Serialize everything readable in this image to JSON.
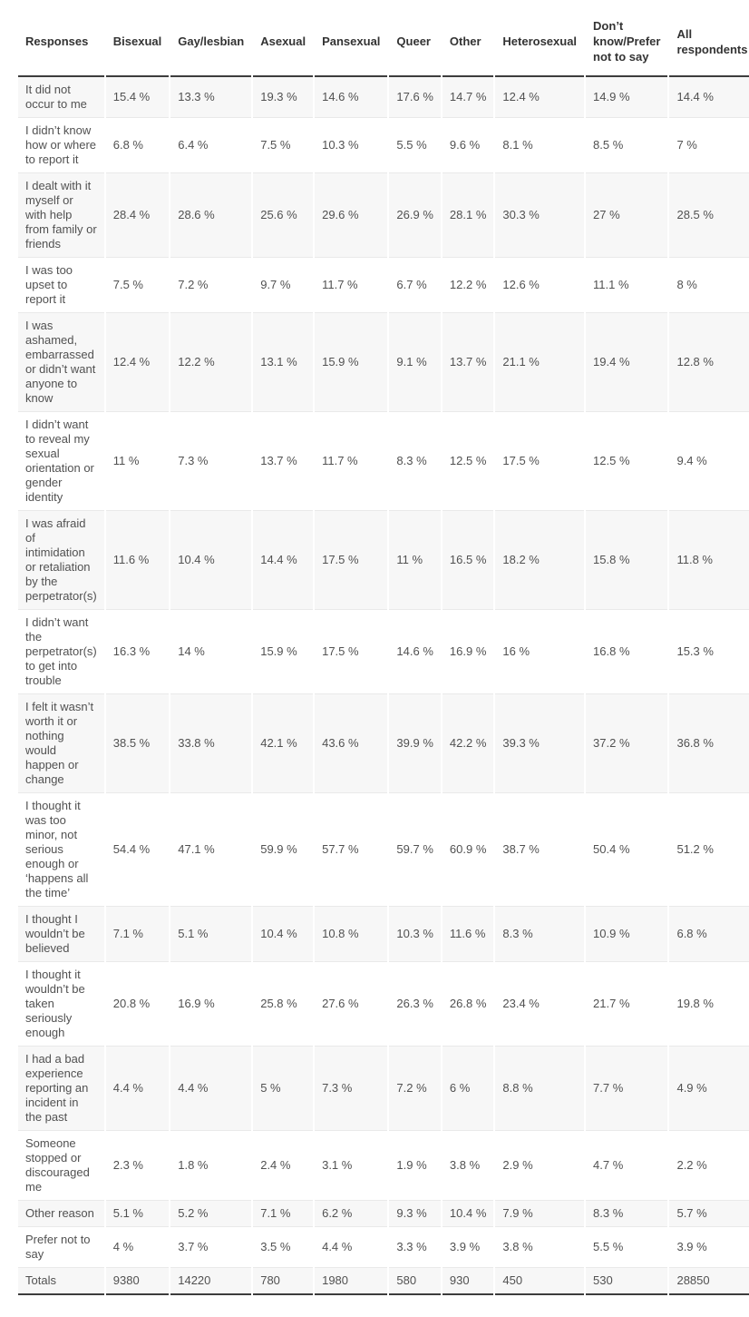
{
  "colors": {
    "row_alt_background": "#f7f7f7",
    "row_separator": "#e9e9e9",
    "heavy_rule": "#3d3d3d",
    "header_text": "#333333",
    "cell_text": "#515151"
  },
  "table": {
    "columns": [
      "Responses",
      "Bisexual",
      "Gay/lesbian",
      "Asexual",
      "Pansexual",
      "Queer",
      "Other",
      "Heterosexual",
      "Don’t know/Prefer not to say",
      "All respondents"
    ],
    "rows": [
      {
        "label": "It did not occur to me",
        "values": [
          "15.4 %",
          "13.3 %",
          "19.3 %",
          "14.6 %",
          "17.6 %",
          "14.7 %",
          "12.4 %",
          "14.9 %",
          "14.4 %"
        ]
      },
      {
        "label": "I didn’t know how or where to report it",
        "values": [
          "6.8 %",
          "6.4 %",
          "7.5 %",
          "10.3 %",
          "5.5 %",
          "9.6 %",
          "8.1 %",
          "8.5 %",
          "7 %"
        ]
      },
      {
        "label": "I dealt with it myself or with help from family or friends",
        "values": [
          "28.4 %",
          "28.6 %",
          "25.6 %",
          "29.6 %",
          "26.9 %",
          "28.1 %",
          "30.3 %",
          "27 %",
          "28.5 %"
        ]
      },
      {
        "label": "I was too upset to report it",
        "values": [
          "7.5 %",
          "7.2 %",
          "9.7 %",
          "11.7 %",
          "6.7 %",
          "12.2 %",
          "12.6 %",
          "11.1 %",
          "8 %"
        ]
      },
      {
        "label": "I was ashamed, embarrassed or didn’t want anyone to know",
        "values": [
          "12.4 %",
          "12.2 %",
          "13.1 %",
          "15.9 %",
          "9.1 %",
          "13.7 %",
          "21.1 %",
          "19.4 %",
          "12.8 %"
        ]
      },
      {
        "label": "I didn’t want to reveal my sexual orientation or gender identity",
        "values": [
          "11 %",
          "7.3 %",
          "13.7 %",
          "11.7 %",
          "8.3 %",
          "12.5 %",
          "17.5 %",
          "12.5 %",
          "9.4 %"
        ]
      },
      {
        "label": "I was afraid of intimidation or retaliation by the perpetrator(s)",
        "values": [
          "11.6 %",
          "10.4 %",
          "14.4 %",
          "17.5 %",
          "11 %",
          "16.5 %",
          "18.2 %",
          "15.8 %",
          "11.8 %"
        ]
      },
      {
        "label": "I didn’t want the perpetrator(s) to get into trouble",
        "values": [
          "16.3 %",
          "14 %",
          "15.9 %",
          "17.5 %",
          "14.6 %",
          "16.9 %",
          "16 %",
          "16.8 %",
          "15.3 %"
        ]
      },
      {
        "label": "I felt it wasn’t worth it or nothing would happen or change",
        "values": [
          "38.5 %",
          "33.8 %",
          "42.1 %",
          "43.6 %",
          "39.9 %",
          "42.2 %",
          "39.3 %",
          "37.2 %",
          "36.8 %"
        ]
      },
      {
        "label": "I thought it was too minor, not serious enough or ‘happens all the time’",
        "values": [
          "54.4 %",
          "47.1 %",
          "59.9 %",
          "57.7 %",
          "59.7 %",
          "60.9 %",
          "38.7 %",
          "50.4 %",
          "51.2 %"
        ]
      },
      {
        "label": "I thought I wouldn’t be believed",
        "values": [
          "7.1 %",
          "5.1 %",
          "10.4 %",
          "10.8 %",
          "10.3 %",
          "11.6 %",
          "8.3 %",
          "10.9 %",
          "6.8 %"
        ]
      },
      {
        "label": "I thought it wouldn’t be taken seriously enough",
        "values": [
          "20.8 %",
          "16.9 %",
          "25.8 %",
          "27.6 %",
          "26.3 %",
          "26.8 %",
          "23.4 %",
          "21.7 %",
          "19.8 %"
        ]
      },
      {
        "label": "I had a bad experience reporting an incident in the past",
        "values": [
          "4.4 %",
          "4.4 %",
          "5 %",
          "7.3 %",
          "7.2 %",
          "6 %",
          "8.8 %",
          "7.7 %",
          "4.9 %"
        ]
      },
      {
        "label": "Someone stopped or discouraged me",
        "values": [
          "2.3 %",
          "1.8 %",
          "2.4 %",
          "3.1 %",
          "1.9 %",
          "3.8 %",
          "2.9 %",
          "4.7 %",
          "2.2 %"
        ]
      },
      {
        "label": "Other reason",
        "values": [
          "5.1 %",
          "5.2 %",
          "7.1 %",
          "6.2 %",
          "9.3 %",
          "10.4 %",
          "7.9 %",
          "8.3 %",
          "5.7 %"
        ]
      },
      {
        "label": "Prefer not to say",
        "values": [
          "4 %",
          "3.7 %",
          "3.5 %",
          "4.4 %",
          "3.3 %",
          "3.9 %",
          "3.8 %",
          "5.5 %",
          "3.9 %"
        ]
      },
      {
        "label": "Totals",
        "values": [
          "9380",
          "14220",
          "780",
          "1980",
          "580",
          "930",
          "450",
          "530",
          "28850"
        ]
      }
    ]
  },
  "chart_data": {
    "type": "table",
    "columns": [
      "Bisexual",
      "Gay/lesbian",
      "Asexual",
      "Pansexual",
      "Queer",
      "Other",
      "Heterosexual",
      "Don’t know/Prefer not to say",
      "All respondents"
    ],
    "rows": [
      {
        "response": "It did not occur to me",
        "values_pct": [
          15.4,
          13.3,
          19.3,
          14.6,
          17.6,
          14.7,
          12.4,
          14.9,
          14.4
        ]
      },
      {
        "response": "I didn’t know how or where to report it",
        "values_pct": [
          6.8,
          6.4,
          7.5,
          10.3,
          5.5,
          9.6,
          8.1,
          8.5,
          7
        ]
      },
      {
        "response": "I dealt with it myself or with help from family or friends",
        "values_pct": [
          28.4,
          28.6,
          25.6,
          29.6,
          26.9,
          28.1,
          30.3,
          27,
          28.5
        ]
      },
      {
        "response": "I was too upset to report it",
        "values_pct": [
          7.5,
          7.2,
          9.7,
          11.7,
          6.7,
          12.2,
          12.6,
          11.1,
          8
        ]
      },
      {
        "response": "I was ashamed, embarrassed or didn’t want anyone to know",
        "values_pct": [
          12.4,
          12.2,
          13.1,
          15.9,
          9.1,
          13.7,
          21.1,
          19.4,
          12.8
        ]
      },
      {
        "response": "I didn’t want to reveal my sexual orientation or gender identity",
        "values_pct": [
          11,
          7.3,
          13.7,
          11.7,
          8.3,
          12.5,
          17.5,
          12.5,
          9.4
        ]
      },
      {
        "response": "I was afraid of intimidation or retaliation by the perpetrator(s)",
        "values_pct": [
          11.6,
          10.4,
          14.4,
          17.5,
          11,
          16.5,
          18.2,
          15.8,
          11.8
        ]
      },
      {
        "response": "I didn’t want the perpetrator(s) to get into trouble",
        "values_pct": [
          16.3,
          14,
          15.9,
          17.5,
          14.6,
          16.9,
          16,
          16.8,
          15.3
        ]
      },
      {
        "response": "I felt it wasn’t worth it or nothing would happen or change",
        "values_pct": [
          38.5,
          33.8,
          42.1,
          43.6,
          39.9,
          42.2,
          39.3,
          37.2,
          36.8
        ]
      },
      {
        "response": "I thought it was too minor, not serious enough or ‘happens all the time’",
        "values_pct": [
          54.4,
          47.1,
          59.9,
          57.7,
          59.7,
          60.9,
          38.7,
          50.4,
          51.2
        ]
      },
      {
        "response": "I thought I wouldn’t be believed",
        "values_pct": [
          7.1,
          5.1,
          10.4,
          10.8,
          10.3,
          11.6,
          8.3,
          10.9,
          6.8
        ]
      },
      {
        "response": "I thought it wouldn’t be taken seriously enough",
        "values_pct": [
          20.8,
          16.9,
          25.8,
          27.6,
          26.3,
          26.8,
          23.4,
          21.7,
          19.8
        ]
      },
      {
        "response": "I had a bad experience reporting an incident in the past",
        "values_pct": [
          4.4,
          4.4,
          5,
          7.3,
          7.2,
          6,
          8.8,
          7.7,
          4.9
        ]
      },
      {
        "response": "Someone stopped or discouraged me",
        "values_pct": [
          2.3,
          1.8,
          2.4,
          3.1,
          1.9,
          3.8,
          2.9,
          4.7,
          2.2
        ]
      },
      {
        "response": "Other reason",
        "values_pct": [
          5.1,
          5.2,
          7.1,
          6.2,
          9.3,
          10.4,
          7.9,
          8.3,
          5.7
        ]
      },
      {
        "response": "Prefer not to say",
        "values_pct": [
          4,
          3.7,
          3.5,
          4.4,
          3.3,
          3.9,
          3.8,
          5.5,
          3.9
        ]
      }
    ],
    "totals": {
      "response": "Totals",
      "values": [
        9380,
        14220,
        780,
        1980,
        580,
        930,
        450,
        530,
        28850
      ]
    }
  }
}
